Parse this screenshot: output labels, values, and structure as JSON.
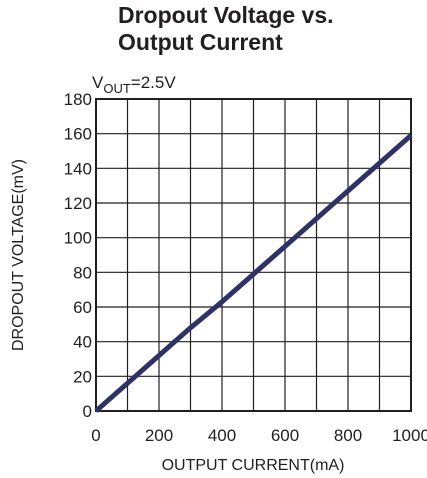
{
  "chart_data": {
    "type": "line",
    "title_line1": "Dropout Voltage vs.",
    "title_line2": "Output Current",
    "annotation": {
      "main": "V",
      "sub": "OUT",
      "suffix": "=2.5V"
    },
    "xlabel": "OUTPUT CURRENT(mA)",
    "ylabel": "DROPOUT VOLTAGE(mV)",
    "xlim": [
      0,
      1000
    ],
    "ylim": [
      0,
      180
    ],
    "x_ticks": [
      0,
      200,
      400,
      600,
      800,
      1000
    ],
    "y_ticks": [
      0,
      20,
      40,
      60,
      80,
      100,
      120,
      140,
      160,
      180
    ],
    "grid": true,
    "x_grid_step": 100,
    "y_grid_step": 20,
    "line_color": "#2e3364",
    "series": [
      {
        "x": [
          0,
          100,
          200,
          300,
          400,
          500,
          600,
          700,
          800,
          900,
          1000
        ],
        "values": [
          0,
          16,
          32,
          48,
          63,
          79,
          95,
          111,
          127,
          143,
          159
        ]
      }
    ]
  }
}
